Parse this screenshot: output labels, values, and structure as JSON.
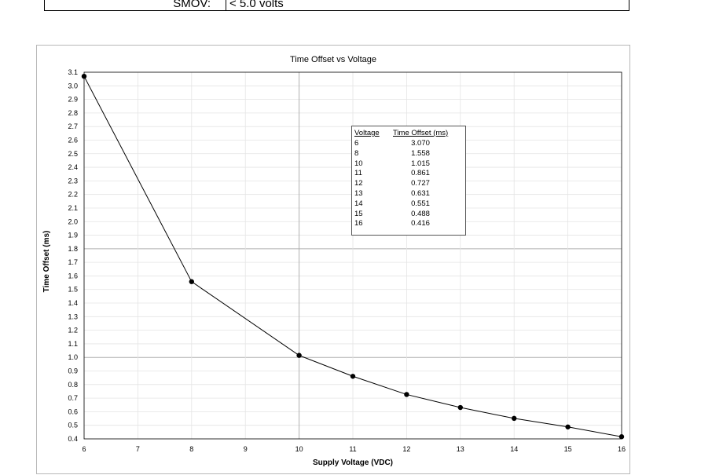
{
  "top_table": {
    "label": "SMOV:",
    "value": "< 5.0 volts"
  },
  "chart_data": {
    "type": "line",
    "title": "Time Offset vs Voltage",
    "xlabel": "Supply Voltage (VDC)",
    "ylabel": "Time Offset (ms)",
    "xlim": [
      6,
      16
    ],
    "ylim": [
      0.4,
      3.1
    ],
    "x_ticks": [
      "6",
      "7",
      "8",
      "9",
      "10",
      "11",
      "12",
      "13",
      "14",
      "15",
      "16"
    ],
    "y_ticks": [
      "0.4",
      "0.5",
      "0.6",
      "0.7",
      "0.8",
      "0.9",
      "1.0",
      "1.1",
      "1.2",
      "1.3",
      "1.4",
      "1.5",
      "1.6",
      "1.7",
      "1.8",
      "1.9",
      "2.0",
      "2.1",
      "2.2",
      "2.3",
      "2.4",
      "2.5",
      "2.6",
      "2.7",
      "2.8",
      "2.9",
      "3.0",
      "3.1"
    ],
    "grid": true,
    "series": [
      {
        "x": [
          6,
          8,
          10,
          11,
          12,
          13,
          14,
          15,
          16
        ],
        "y": [
          3.07,
          1.558,
          1.015,
          0.861,
          0.727,
          0.631,
          0.551,
          0.488,
          0.416
        ]
      }
    ],
    "inset_table": {
      "headers": [
        "Voltage",
        "Time Offset (ms)"
      ],
      "rows": [
        [
          "6",
          "3.070"
        ],
        [
          "8",
          "1.558"
        ],
        [
          "10",
          "1.015"
        ],
        [
          "11",
          "0.861"
        ],
        [
          "12",
          "0.727"
        ],
        [
          "13",
          "0.631"
        ],
        [
          "14",
          "0.551"
        ],
        [
          "15",
          "0.488"
        ],
        [
          "16",
          "0.416"
        ]
      ]
    }
  }
}
